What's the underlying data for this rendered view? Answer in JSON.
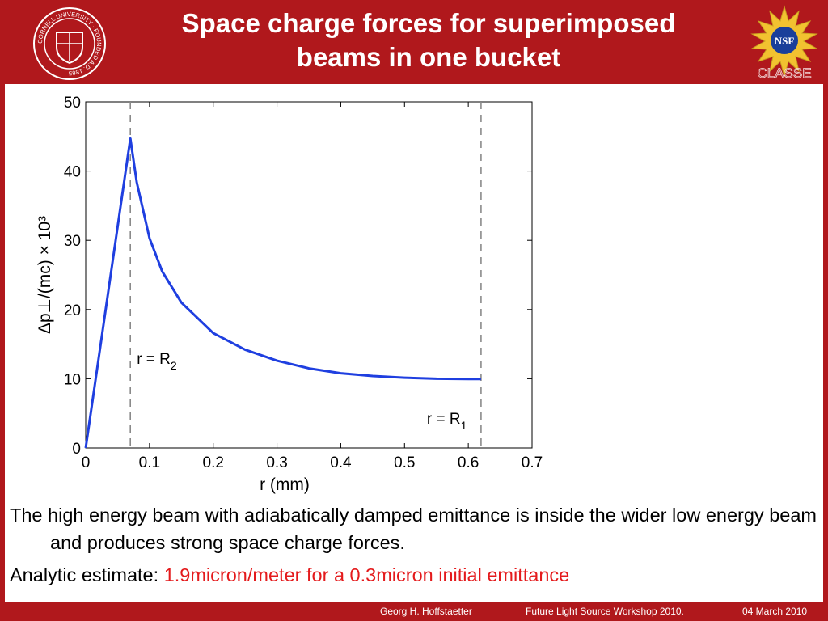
{
  "slide": {
    "title_line1": "Space charge forces for superimposed",
    "title_line2": "beams in one bucket",
    "paragraph1": "The high energy beam with adiabatically damped emittance is inside the wider low energy beam and produces strong space charge forces.",
    "paragraph2_label": "Analytic estimate: ",
    "paragraph2_highlight": "1.9micron/meter for a 0.3micron initial emittance",
    "logo_left_text": "CORNELL UNIVERSITY · FOUNDED A.D. 1865",
    "logo_right_text": "NSF",
    "logo_right_caption": "CLASSE",
    "colors": {
      "brand": "#b0181c",
      "highlight": "#e41a1c",
      "curve": "#1f3fe0"
    }
  },
  "footer": {
    "author": "Georg H. Hoffstaetter",
    "event": "Future Light Source Workshop 2010.",
    "date": "04 March 2010"
  },
  "chart_data": {
    "type": "line",
    "title": "",
    "xlabel": "r (mm)",
    "ylabel": "Δp⊥/(mc) × 10³",
    "xlim": [
      0,
      0.7
    ],
    "ylim": [
      0,
      50
    ],
    "xticks": [
      "0",
      "0.1",
      "0.2",
      "0.3",
      "0.4",
      "0.5",
      "0.6",
      "0.7"
    ],
    "yticks": [
      "0",
      "10",
      "20",
      "30",
      "40",
      "50"
    ],
    "grid": false,
    "series": [
      {
        "x": [
          0,
          0.07,
          0.08,
          0.1,
          0.12,
          0.15,
          0.2,
          0.25,
          0.3,
          0.35,
          0.4,
          0.45,
          0.5,
          0.55,
          0.6,
          0.62
        ],
        "y": [
          0,
          44.7,
          38.4,
          30.3,
          25.5,
          21.0,
          16.6,
          14.2,
          12.6,
          11.5,
          10.8,
          10.4,
          10.15,
          10.0,
          9.95,
          9.95
        ]
      }
    ],
    "vlines": [
      {
        "x": 0.07,
        "label_main": "r = R",
        "label_sub": "2"
      },
      {
        "x": 0.62,
        "label_main": "r = R",
        "label_sub": "1"
      }
    ]
  }
}
